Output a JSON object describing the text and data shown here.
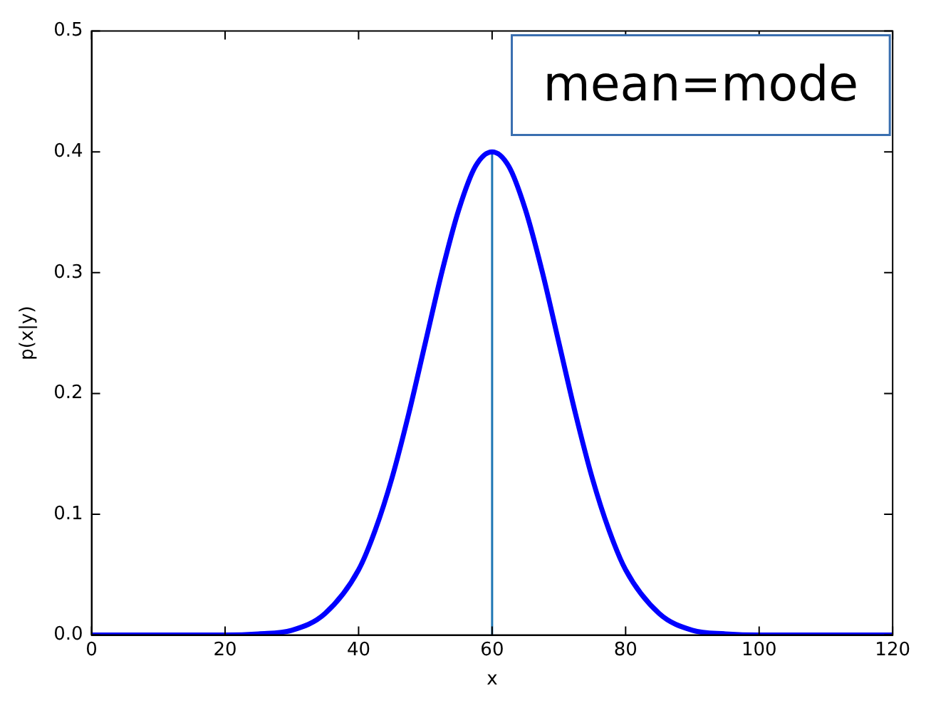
{
  "chart_data": {
    "type": "line",
    "xlabel": "x",
    "ylabel": "p(x|y)",
    "annotations": [
      "mean=mode"
    ],
    "xlim": [
      0,
      120
    ],
    "xticks": [
      0,
      20,
      40,
      60,
      80,
      100,
      120
    ],
    "ylim": [
      0,
      0.5
    ],
    "yticks": [
      {
        "value": 0,
        "label": "0.0"
      },
      {
        "value": 0.1,
        "label": "0.1"
      },
      {
        "value": 0.2,
        "label": "0.2"
      },
      {
        "value": 0.3,
        "label": "0.3"
      },
      {
        "value": 0.4,
        "label": "0.4"
      },
      {
        "value": 0.5,
        "label": "0.5"
      }
    ],
    "grid": false,
    "legend": false,
    "marker": "none",
    "line_style": "solid",
    "series": [
      {
        "color": "#0000ff",
        "x": [
          0,
          10,
          20,
          25,
          30,
          35,
          40,
          42.5,
          45,
          47.5,
          50,
          52.5,
          55,
          57.5,
          60,
          62.5,
          65,
          67.5,
          70,
          72.5,
          75,
          77.5,
          80,
          85,
          90,
          95,
          100,
          110,
          120
        ],
        "values": [
          0,
          0,
          0,
          0.001,
          0.004,
          0.018,
          0.054,
          0.087,
          0.13,
          0.183,
          0.242,
          0.301,
          0.352,
          0.388,
          0.4,
          0.388,
          0.352,
          0.301,
          0.242,
          0.183,
          0.13,
          0.087,
          0.054,
          0.018,
          0.004,
          0.001,
          0,
          0,
          0
        ]
      },
      {
        "color": "#1f77b4",
        "x": [
          60,
          60
        ],
        "values": [
          0,
          0.4
        ]
      }
    ]
  }
}
